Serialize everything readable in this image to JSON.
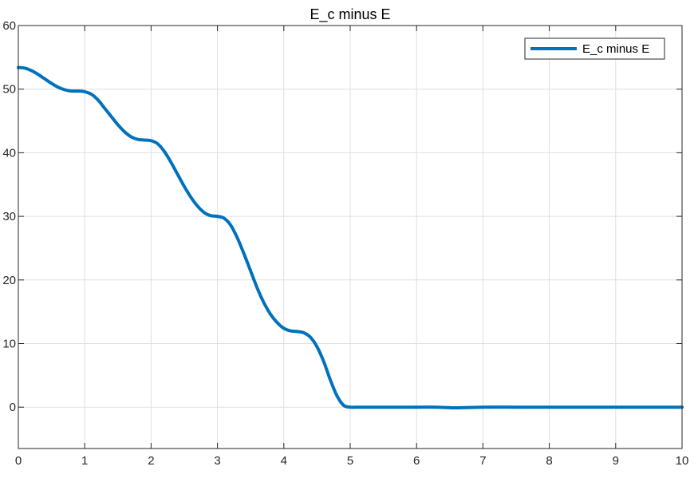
{
  "chart_data": {
    "type": "line",
    "title": "E_c minus E",
    "xlabel": "",
    "ylabel": "",
    "xlim": [
      0,
      10
    ],
    "ylim": [
      -6.5,
      60
    ],
    "xticks": [
      0,
      1,
      2,
      3,
      4,
      5,
      6,
      7,
      8,
      9,
      10
    ],
    "yticks": [
      0,
      10,
      20,
      30,
      40,
      50,
      60
    ],
    "xtick_labels": [
      "0",
      "1",
      "2",
      "3",
      "4",
      "5",
      "6",
      "7",
      "8",
      "9",
      "10"
    ],
    "ytick_labels": [
      "0",
      "10",
      "20",
      "30",
      "40",
      "50",
      "60"
    ],
    "grid": true,
    "box": true,
    "legend_position": "top-right",
    "series": [
      {
        "name": "E_c minus E",
        "color": "#0072BD",
        "x": [
          0,
          0.1,
          0.2,
          0.3,
          0.4,
          0.5,
          0.6,
          0.7,
          0.8,
          0.9,
          1.0,
          1.1,
          1.2,
          1.3,
          1.4,
          1.5,
          1.6,
          1.7,
          1.8,
          1.9,
          2.0,
          2.1,
          2.2,
          2.3,
          2.4,
          2.5,
          2.6,
          2.7,
          2.8,
          2.9,
          3.0,
          3.1,
          3.2,
          3.3,
          3.4,
          3.5,
          3.6,
          3.7,
          3.8,
          3.9,
          4.0,
          4.1,
          4.2,
          4.3,
          4.4,
          4.5,
          4.6,
          4.7,
          4.8,
          4.9,
          5.0,
          5.1,
          5.15,
          5.2,
          5.25,
          5.3,
          6.0,
          6.3,
          6.6,
          7.0,
          7.5,
          8.0,
          9.0,
          10.0
        ],
        "y": [
          53.4,
          53.3,
          52.9,
          52.3,
          51.6,
          50.9,
          50.3,
          49.9,
          49.7,
          49.7,
          49.6,
          49.2,
          48.3,
          47.0,
          45.7,
          44.4,
          43.3,
          42.5,
          42.1,
          42.0,
          41.9,
          41.4,
          40.2,
          38.5,
          36.6,
          34.7,
          33.0,
          31.6,
          30.6,
          30.1,
          30.0,
          29.7,
          28.6,
          26.6,
          24.1,
          21.4,
          18.7,
          16.4,
          14.6,
          13.3,
          12.4,
          12.0,
          11.9,
          11.7,
          11.0,
          9.5,
          7.2,
          4.3,
          1.8,
          0.3,
          0.0,
          0.0,
          0.0,
          0.0,
          0.0,
          0.0,
          0.0,
          0.0,
          -0.1,
          0.0,
          0.0,
          0.0,
          0.0,
          0.0
        ]
      }
    ]
  }
}
